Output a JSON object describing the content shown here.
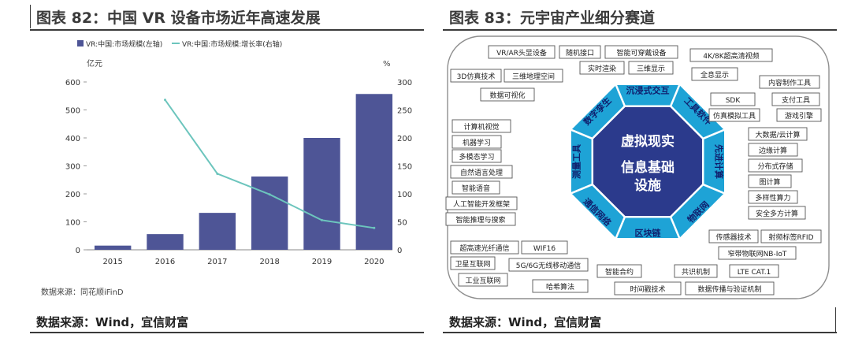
{
  "left": {
    "title": "图表 82：中国 VR 设备市场近年高速发展",
    "chart_data": {
      "type": "bar",
      "categories": [
        "2015",
        "2016",
        "2017",
        "2018",
        "2019",
        "2020"
      ],
      "series": [
        {
          "name": "VR:中国:市场规模(左轴)",
          "type": "bar",
          "axis": "left",
          "values": [
            15,
            56,
            132,
            262,
            400,
            557
          ]
        },
        {
          "name": "VR:中国:市场规模:增长率(右轴)",
          "type": "line",
          "axis": "right",
          "values": [
            null,
            268,
            136,
            99,
            53,
            39
          ]
        }
      ],
      "y_left": {
        "unit": "亿元",
        "range": [
          0,
          600
        ],
        "ticks": [
          "0",
          "100",
          "200",
          "300",
          "400",
          "500",
          "600"
        ]
      },
      "y_right": {
        "unit": "%",
        "range": [
          0,
          300
        ],
        "ticks": [
          "0",
          "50",
          "100",
          "150",
          "200",
          "250",
          "300"
        ]
      },
      "legend_position": "top-left",
      "grid": false,
      "colors": {
        "bar": "#4e5596",
        "line": "#6cc5bd"
      }
    },
    "inner_source": "数据来源：同花顺iFinD",
    "source": "数据来源：Wind，宜信财富"
  },
  "right": {
    "title": "图表 83：元宇宙产业细分赛道",
    "center": [
      "虚拟现实",
      "信息基础",
      "设施"
    ],
    "octagon_segments": [
      "沉浸式交互",
      "工具软件",
      "先进计算",
      "物联网",
      "区块链",
      "通信网络",
      "测量工具",
      "数字孪生"
    ],
    "labels": [
      "VR/AR头显设备",
      "随机接口",
      "智能可穿戴设备",
      "4K/8K超高清视频",
      "实时渲染",
      "三维显示",
      "全息显示",
      "3D仿真技术",
      "三维地理空间",
      "数据可视化",
      "内容制作工具",
      "SDK",
      "支付工具",
      "仿真模拟工具",
      "游戏引擎",
      "计算机视觉",
      "机器学习",
      "多模态学习",
      "自然语言处理",
      "智能语音",
      "人工智能开发框架",
      "智能推理与搜索",
      "大数据/云计算",
      "边缘计算",
      "分布式存储",
      "图计算",
      "多样性算力",
      "安全多方计算",
      "超高速光纤通信",
      "WIF16",
      "卫星互联网",
      "5G/6G无线移动通信",
      "工业互联网",
      "传感器技术",
      "射频标签RFID",
      "窄带物联网NB-IoT",
      "智能合约",
      "共识机制",
      "LTE CAT.1",
      "哈希算法",
      "时间戳技术",
      "数据传播与验证机制"
    ],
    "source": "数据来源：Wind，宜信财富"
  }
}
